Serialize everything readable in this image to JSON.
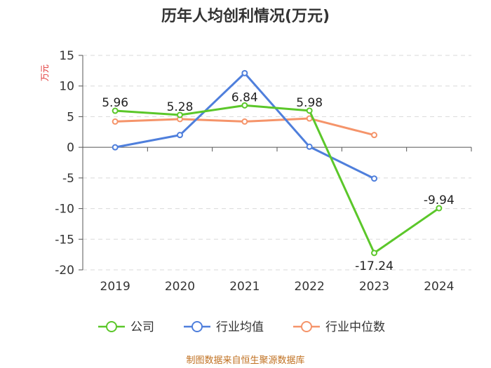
{
  "chart_data": {
    "type": "line",
    "title": "历年人均创利情况(万元)",
    "ylabel": "万元",
    "categories": [
      "2019",
      "2020",
      "2021",
      "2022",
      "2023",
      "2024"
    ],
    "ylim": [
      -20,
      15
    ],
    "yticks": [
      15,
      10,
      5,
      0,
      -5,
      -10,
      -15,
      -20
    ],
    "grid": true,
    "legend_position": "bottom",
    "series": [
      {
        "name": "公司",
        "color": "#5bc72a",
        "values": [
          5.96,
          5.28,
          6.84,
          5.98,
          -17.24,
          -9.94
        ],
        "labels": [
          "5.96",
          "5.28",
          "6.84",
          "5.98",
          "-17.24",
          "-9.94"
        ]
      },
      {
        "name": "行业均值",
        "color": "#4f7fdc",
        "values": [
          0.0,
          2.0,
          12.1,
          0.1,
          -5.1,
          null
        ]
      },
      {
        "name": "行业中位数",
        "color": "#f5946a",
        "values": [
          4.2,
          4.6,
          4.2,
          4.7,
          2.0,
          null
        ]
      }
    ]
  },
  "source": "制图数据来自恒生聚源数据库"
}
